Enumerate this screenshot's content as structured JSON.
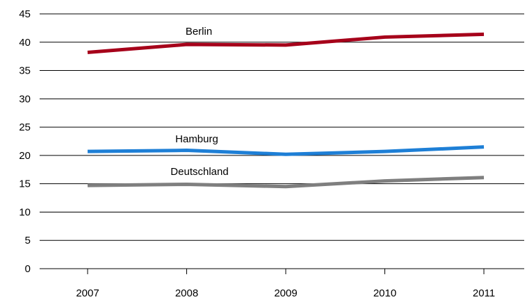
{
  "chart_data": {
    "type": "line",
    "title": "",
    "xlabel": "",
    "ylabel": "",
    "x": [
      "2007",
      "2008",
      "2009",
      "2010",
      "2011"
    ],
    "ylim": [
      0,
      45
    ],
    "yticks": [
      0,
      5,
      10,
      15,
      20,
      25,
      30,
      35,
      40,
      45
    ],
    "grid": true,
    "legend": "none",
    "series": [
      {
        "name": "Berlin",
        "values": [
          38.2,
          39.6,
          39.5,
          40.9,
          41.4
        ],
        "color": "#a6001a"
      },
      {
        "name": "Hamburg",
        "values": [
          20.7,
          20.9,
          20.2,
          20.7,
          21.5
        ],
        "color": "#1e7fd6"
      },
      {
        "name": "Deutschland",
        "values": [
          14.7,
          14.9,
          14.5,
          15.5,
          16.1
        ],
        "color": "#7f7f7f"
      }
    ]
  }
}
